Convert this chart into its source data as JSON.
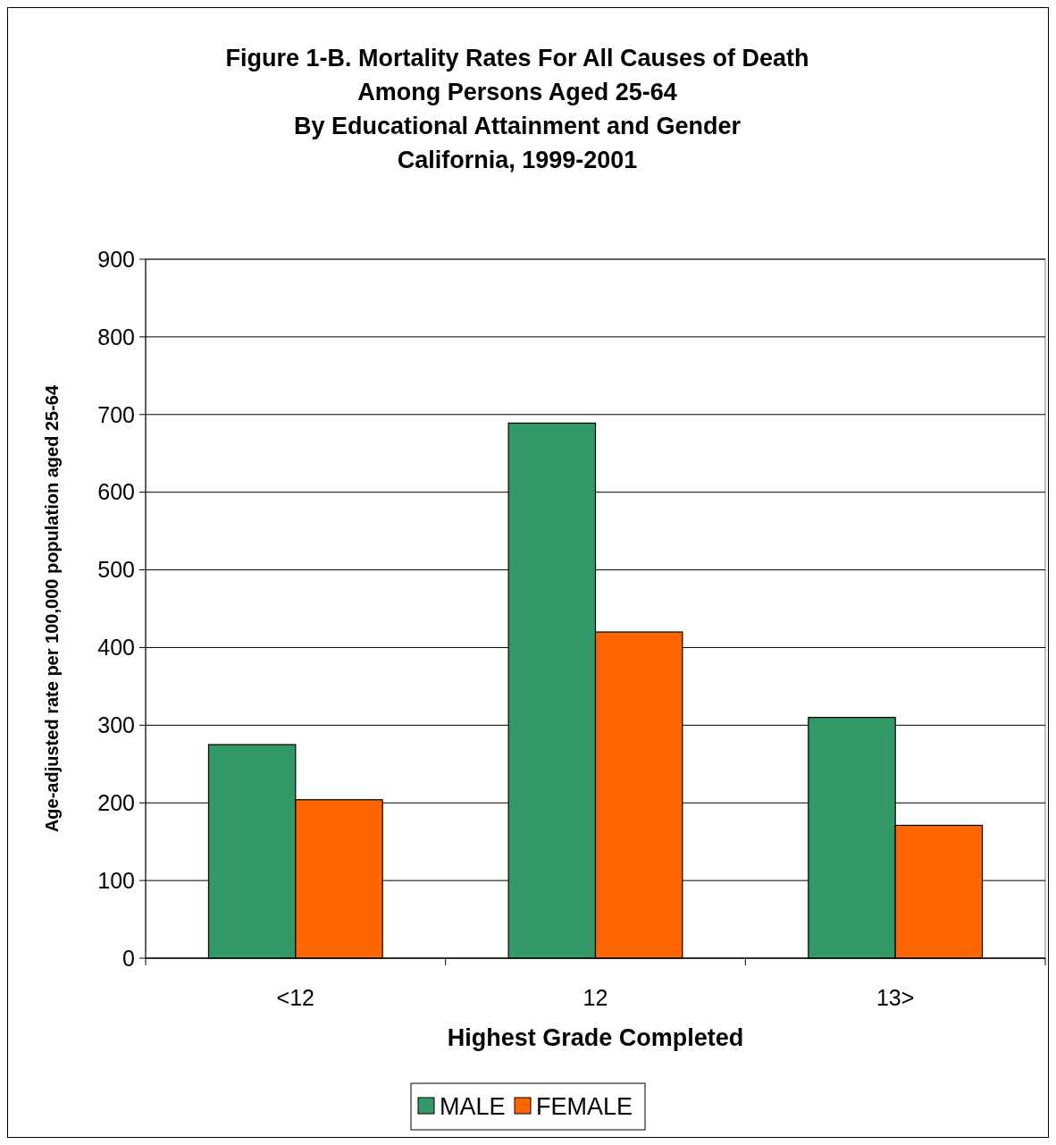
{
  "chart_data": {
    "type": "bar",
    "title": "Figure 1-B.  Mortality Rates For All Causes of Death\nAmong Persons Aged 25-64\nBy Educational Attainment and Gender\nCalifornia, 1999-2001",
    "xlabel": "Highest Grade Completed",
    "ylabel": "Age-adjusted rate per 100,000 population aged 25-64",
    "categories": [
      "<12",
      "12",
      "13>"
    ],
    "series": [
      {
        "name": "MALE",
        "color": "#339966",
        "values": [
          275,
          689,
          310
        ]
      },
      {
        "name": "FEMALE",
        "color": "#ff6600",
        "values": [
          204,
          420,
          171
        ]
      }
    ],
    "ylim": [
      0,
      900
    ],
    "yticks": [
      0,
      100,
      200,
      300,
      400,
      500,
      600,
      700,
      800,
      900
    ],
    "grid": "y",
    "legend": "bottom"
  }
}
